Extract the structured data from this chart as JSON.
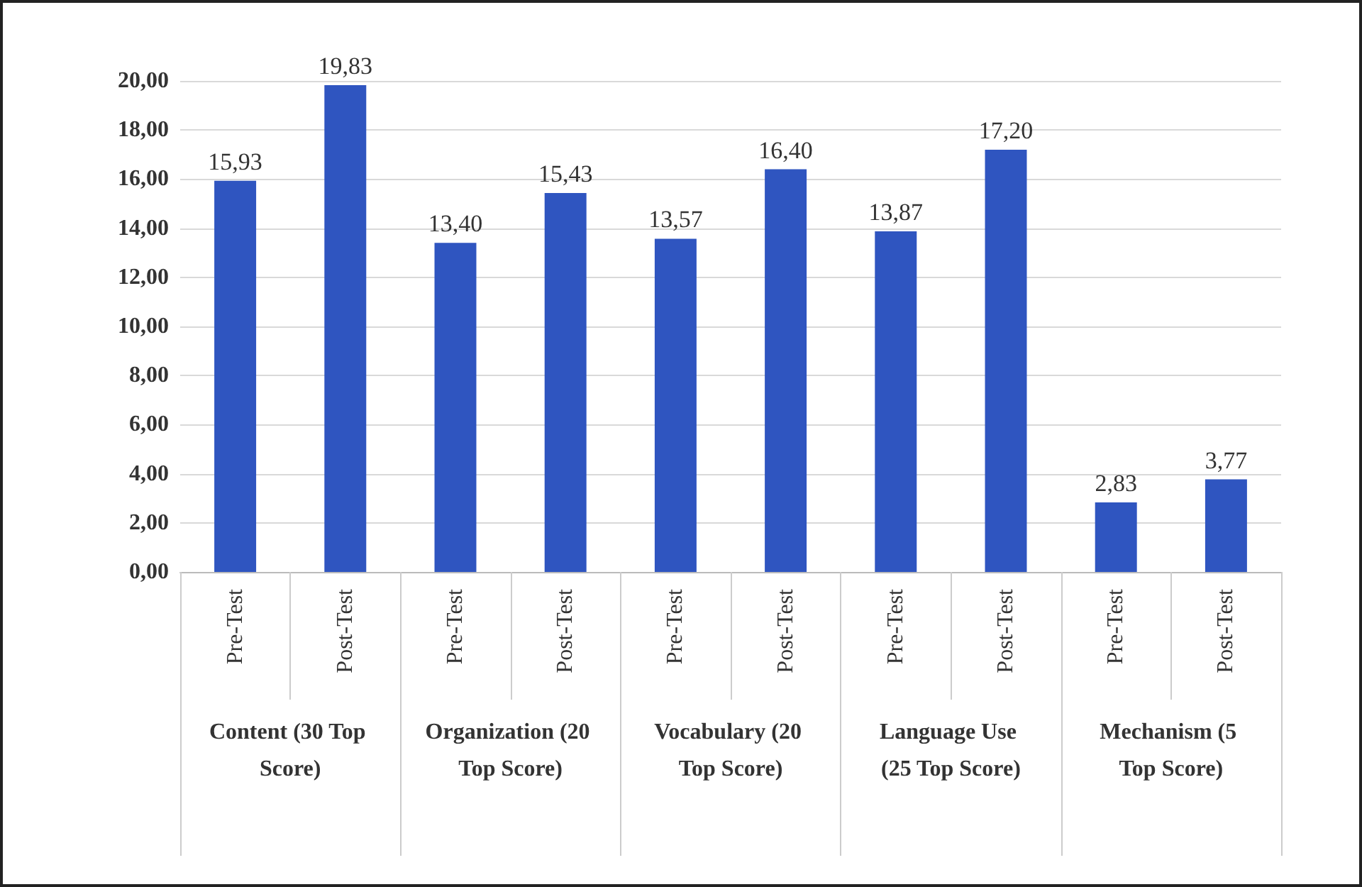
{
  "chart_data": {
    "type": "bar",
    "categories": [
      "Pre-Test",
      "Post-Test",
      "Pre-Test",
      "Post-Test",
      "Pre-Test",
      "Post-Test",
      "Pre-Test",
      "Post-Test",
      "Pre-Test",
      "Post-Test"
    ],
    "values": [
      15.93,
      19.83,
      13.4,
      15.43,
      13.57,
      16.4,
      13.87,
      17.2,
      2.83,
      3.77
    ],
    "value_labels": [
      "15,93",
      "19,83",
      "13,40",
      "15,43",
      "13,57",
      "16,40",
      "13,87",
      "17,20",
      "2,83",
      "3,77"
    ],
    "color": "#2f55c0",
    "annotations": [
      "Content (30 Top Score)",
      "Organization (20 Top Score)",
      "Vocabulary (20 Top Score)",
      "Language Use (25 Top Score)",
      "Mechanism (5 Top Score)"
    ],
    "ylim": [
      0,
      20
    ],
    "yticks": [
      {
        "value": 0,
        "label": "0,00"
      },
      {
        "value": 2,
        "label": "2,00"
      },
      {
        "value": 4,
        "label": "4,00"
      },
      {
        "value": 6,
        "label": "6,00"
      },
      {
        "value": 8,
        "label": "8,00"
      },
      {
        "value": 10,
        "label": "10,00"
      },
      {
        "value": 12,
        "label": "12,00"
      },
      {
        "value": 14,
        "label": "14,00"
      },
      {
        "value": 16,
        "label": "16,00"
      },
      {
        "value": 18,
        "label": "18,00"
      },
      {
        "value": 20,
        "label": "20,00"
      }
    ],
    "grid": "y"
  }
}
